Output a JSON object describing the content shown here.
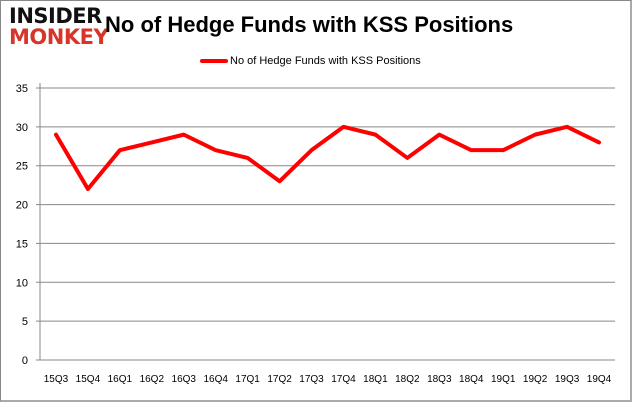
{
  "logo": {
    "line1": "INSIDER",
    "line2": "MONKEY"
  },
  "chart_data": {
    "type": "line",
    "title": "No of Hedge Funds with KSS Positions",
    "categories": [
      "15Q3",
      "15Q4",
      "16Q1",
      "16Q2",
      "16Q3",
      "16Q4",
      "17Q1",
      "17Q2",
      "17Q3",
      "17Q4",
      "18Q1",
      "18Q2",
      "18Q3",
      "18Q4",
      "19Q1",
      "19Q2",
      "19Q3",
      "19Q4"
    ],
    "series": [
      {
        "name": "No of Hedge Funds with KSS Positions",
        "color": "#ff0000",
        "values": [
          29,
          22,
          27,
          28,
          29,
          27,
          26,
          23,
          27,
          30,
          29,
          26,
          29,
          27,
          27,
          29,
          30,
          28
        ]
      }
    ],
    "ylim": [
      0,
      35
    ],
    "yticks": [
      0,
      5,
      10,
      15,
      20,
      25,
      30,
      35
    ],
    "grid": true,
    "legend": "top"
  }
}
